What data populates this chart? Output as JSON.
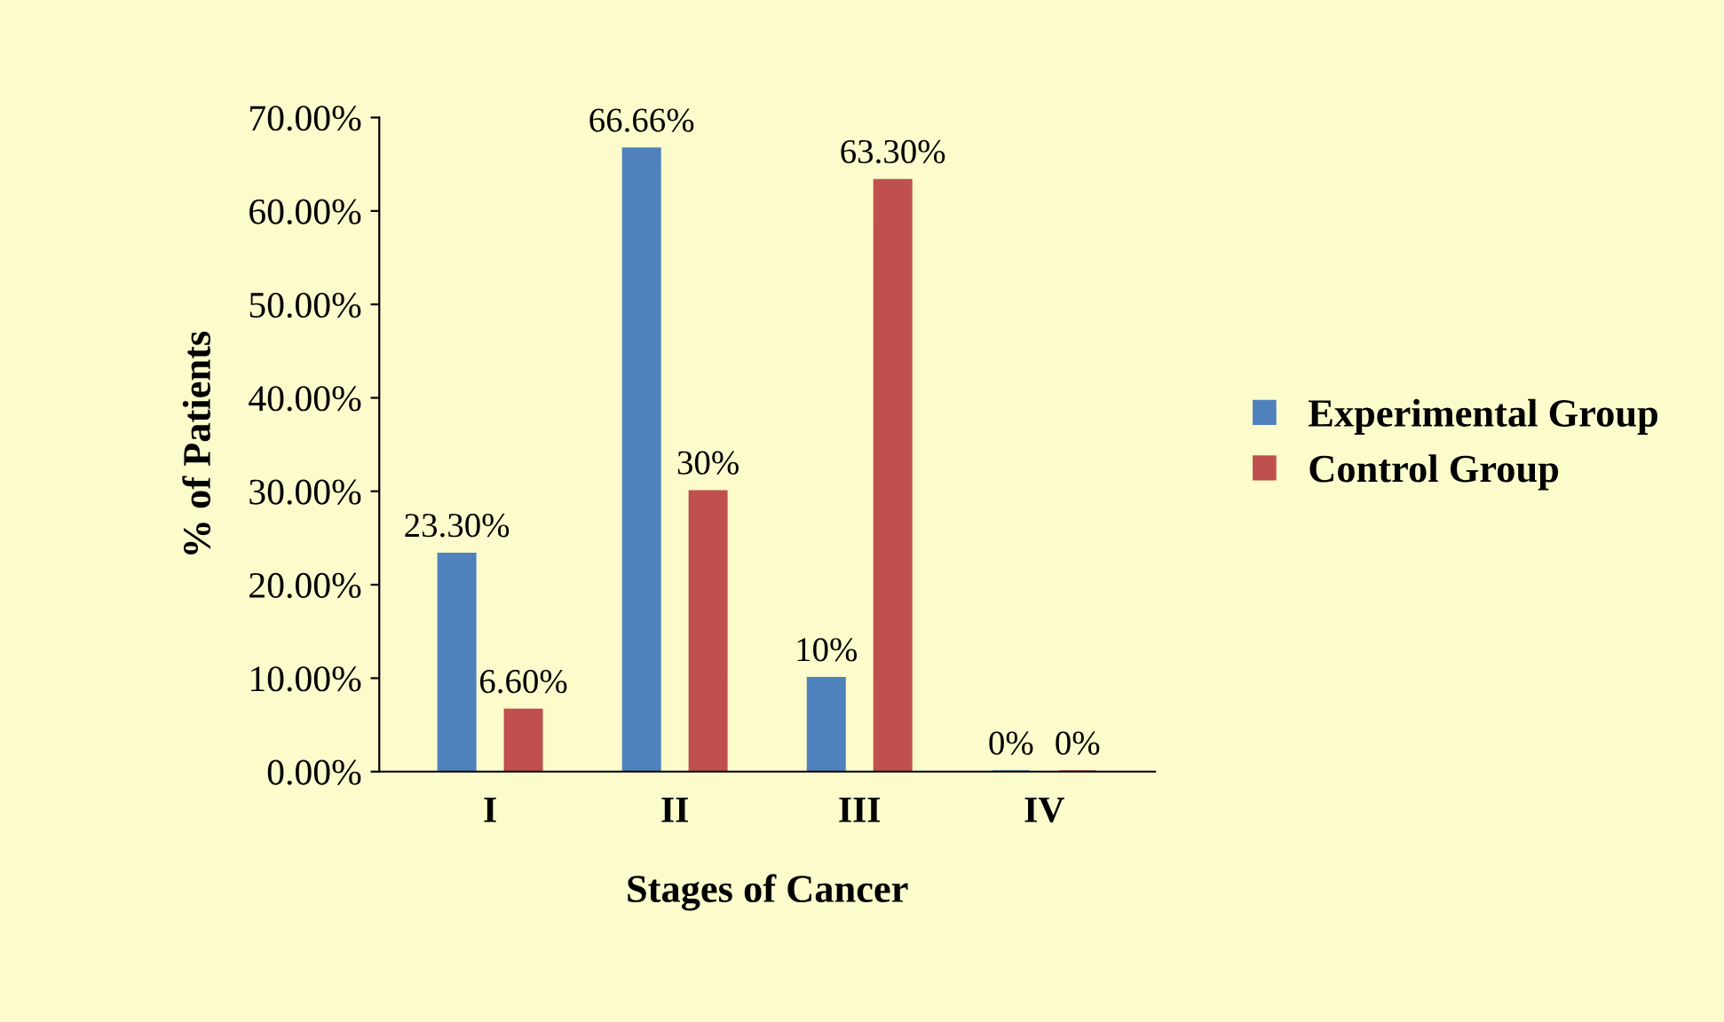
{
  "chart_data": {
    "type": "bar",
    "xlabel": "Stages of Cancer",
    "ylabel": "% of Patients",
    "categories": [
      "I",
      "II",
      "III",
      "IV"
    ],
    "series": [
      {
        "name": "Experimental Group",
        "color": "#4f81bd",
        "values": [
          23.3,
          66.66,
          10,
          0
        ],
        "value_labels": [
          "23.30%",
          "66.66%",
          "10%",
          "0%"
        ]
      },
      {
        "name": "Control Group",
        "color": "#c0504d",
        "values": [
          6.6,
          30,
          63.3,
          0
        ],
        "value_labels": [
          "6.60%",
          "30%",
          "63.30%",
          "0%"
        ]
      }
    ],
    "ylim": [
      0,
      70
    ],
    "yticks": [
      {
        "value": 0,
        "label": "0.00%"
      },
      {
        "value": 10,
        "label": "10.00%"
      },
      {
        "value": 20,
        "label": "20.00%"
      },
      {
        "value": 30,
        "label": "30.00%"
      },
      {
        "value": 40,
        "label": "40.00%"
      },
      {
        "value": 50,
        "label": "50.00%"
      },
      {
        "value": 60,
        "label": "60.00%"
      },
      {
        "value": 70,
        "label": "70.00%"
      }
    ],
    "grid": false,
    "legend": "right"
  }
}
